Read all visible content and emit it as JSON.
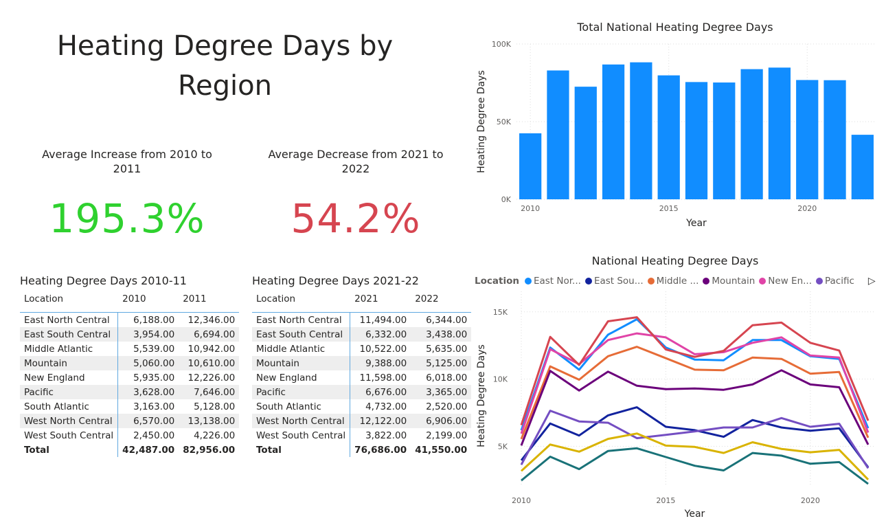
{
  "page": {
    "title": "Heating Degree Days by Region"
  },
  "kpis": [
    {
      "label": "Average Increase from 2010 to 2011",
      "value": "195.3%",
      "color": "#2fd12f"
    },
    {
      "label": "Average Decrease from 2021 to 2022",
      "value": "54.2%",
      "color": "#d64550"
    }
  ],
  "tables": [
    {
      "title": "Heating Degree Days 2010-11",
      "headers": [
        "Location",
        "2010",
        "2011"
      ],
      "rows": [
        [
          "East North Central",
          "6,188.00",
          "12,346.00"
        ],
        [
          "East South Central",
          "3,954.00",
          "6,694.00"
        ],
        [
          "Middle Atlantic",
          "5,539.00",
          "10,942.00"
        ],
        [
          "Mountain",
          "5,060.00",
          "10,610.00"
        ],
        [
          "New England",
          "5,935.00",
          "12,226.00"
        ],
        [
          "Pacific",
          "3,628.00",
          "7,646.00"
        ],
        [
          "South Atlantic",
          "3,163.00",
          "5,128.00"
        ],
        [
          "West North Central",
          "6,570.00",
          "13,138.00"
        ],
        [
          "West South Central",
          "2,450.00",
          "4,226.00"
        ]
      ],
      "total": [
        "Total",
        "42,487.00",
        "82,956.00"
      ]
    },
    {
      "title": "Heating Degree Days 2021-22",
      "headers": [
        "Location",
        "2021",
        "2022"
      ],
      "rows": [
        [
          "East North Central",
          "11,494.00",
          "6,344.00"
        ],
        [
          "East South Central",
          "6,332.00",
          "3,438.00"
        ],
        [
          "Middle Atlantic",
          "10,522.00",
          "5,635.00"
        ],
        [
          "Mountain",
          "9,388.00",
          "5,125.00"
        ],
        [
          "New England",
          "11,598.00",
          "6,018.00"
        ],
        [
          "Pacific",
          "6,676.00",
          "3,365.00"
        ],
        [
          "South Atlantic",
          "4,732.00",
          "2,520.00"
        ],
        [
          "West North Central",
          "12,122.00",
          "6,906.00"
        ],
        [
          "West South Central",
          "3,822.00",
          "2,199.00"
        ]
      ],
      "total": [
        "Total",
        "76,686.00",
        "41,550.00"
      ]
    }
  ],
  "chart_data": [
    {
      "type": "bar",
      "title": "Total National Heating Degree Days",
      "xlabel": "Year",
      "ylabel": "Heating Degree Days",
      "categories": [
        2010,
        2011,
        2012,
        2013,
        2014,
        2015,
        2016,
        2017,
        2018,
        2019,
        2020,
        2021,
        2022
      ],
      "values": [
        42487,
        82956,
        72500,
        86800,
        88200,
        79800,
        75500,
        75200,
        83800,
        84800,
        76800,
        76686,
        41550
      ],
      "ylim": [
        0,
        100000
      ],
      "yticks": [
        0,
        50000,
        100000
      ],
      "ytick_labels": [
        "0K",
        "50K",
        "100K"
      ],
      "xticks": [
        2010,
        2015,
        2020
      ],
      "color": "#118dff",
      "grid": true
    },
    {
      "type": "line",
      "title": "National Heating Degree Days",
      "xlabel": "Year",
      "ylabel": "Heating Degree Days",
      "legend_title": "Location",
      "legend_entries": [
        "East Nor...",
        "East Sou...",
        "Middle ...",
        "Mountain",
        "New En...",
        "Pacific"
      ],
      "x": [
        2010,
        2011,
        2012,
        2013,
        2014,
        2015,
        2016,
        2017,
        2018,
        2019,
        2020,
        2021,
        2022
      ],
      "ylim": [
        2000,
        15500
      ],
      "yticks": [
        5000,
        10000,
        15000
      ],
      "ytick_labels": [
        "5K",
        "10K",
        "15K"
      ],
      "xticks": [
        2010,
        2015,
        2020
      ],
      "grid": true,
      "series": [
        {
          "name": "East North Central",
          "color": "#118dff",
          "values": [
            6188,
            12346,
            10700,
            13300,
            14450,
            12350,
            11450,
            11400,
            12900,
            12900,
            11700,
            11494,
            6344
          ]
        },
        {
          "name": "East South Central",
          "color": "#12239e",
          "values": [
            3954,
            6694,
            5800,
            7300,
            7900,
            6450,
            6200,
            5700,
            6950,
            6400,
            6150,
            6332,
            3438
          ]
        },
        {
          "name": "Middle Atlantic",
          "color": "#e66c37",
          "values": [
            5539,
            10942,
            9950,
            11700,
            12400,
            11550,
            10700,
            10650,
            11600,
            11500,
            10400,
            10522,
            5635
          ]
        },
        {
          "name": "Mountain",
          "color": "#6b007b",
          "values": [
            5060,
            10610,
            9150,
            10550,
            9500,
            9250,
            9300,
            9200,
            9600,
            10650,
            9600,
            9388,
            5125
          ]
        },
        {
          "name": "New England",
          "color": "#e044a7",
          "values": [
            5935,
            12226,
            11100,
            12900,
            13400,
            13100,
            11850,
            12000,
            12700,
            13100,
            11750,
            11598,
            6018
          ]
        },
        {
          "name": "Pacific",
          "color": "#744ec2",
          "values": [
            3628,
            7646,
            6850,
            6750,
            5600,
            5850,
            6100,
            6400,
            6400,
            7100,
            6450,
            6676,
            3365
          ]
        },
        {
          "name": "South Atlantic",
          "color": "#d9b300",
          "values": [
            3163,
            5128,
            4600,
            5550,
            5950,
            5050,
            4950,
            4500,
            5300,
            4800,
            4550,
            4732,
            2520
          ]
        },
        {
          "name": "West North Central",
          "color": "#d64550",
          "values": [
            6570,
            13138,
            11050,
            14300,
            14600,
            12200,
            11650,
            12100,
            14000,
            14200,
            12700,
            12122,
            6906
          ]
        },
        {
          "name": "West South Central",
          "color": "#197278",
          "values": [
            2450,
            4226,
            3300,
            4650,
            4850,
            4200,
            3550,
            3200,
            4500,
            4300,
            3700,
            3822,
            2199
          ]
        }
      ]
    }
  ]
}
